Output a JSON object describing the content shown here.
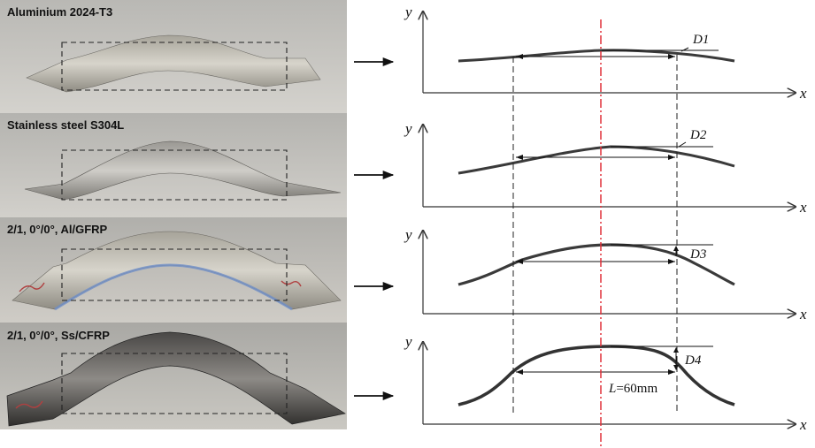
{
  "specimens": [
    {
      "label": "Aluminium 2024-T3",
      "deflection_label": "D1"
    },
    {
      "label": "Stainless steel S304L",
      "deflection_label": "D2"
    },
    {
      "label": "2/1, 0°/0°, Al/GFRP",
      "deflection_label": "D3"
    },
    {
      "label": "2/1, 0°/0°, Ss/CFRP",
      "deflection_label": "D4"
    }
  ],
  "axes": {
    "x_label": "x",
    "y_label": "y"
  },
  "length_label": "L",
  "length_value": "=60mm",
  "colors": {
    "centerline": "#e0303a",
    "profile": "#3a3a3a",
    "photo_bg": "#c9c7c2"
  }
}
